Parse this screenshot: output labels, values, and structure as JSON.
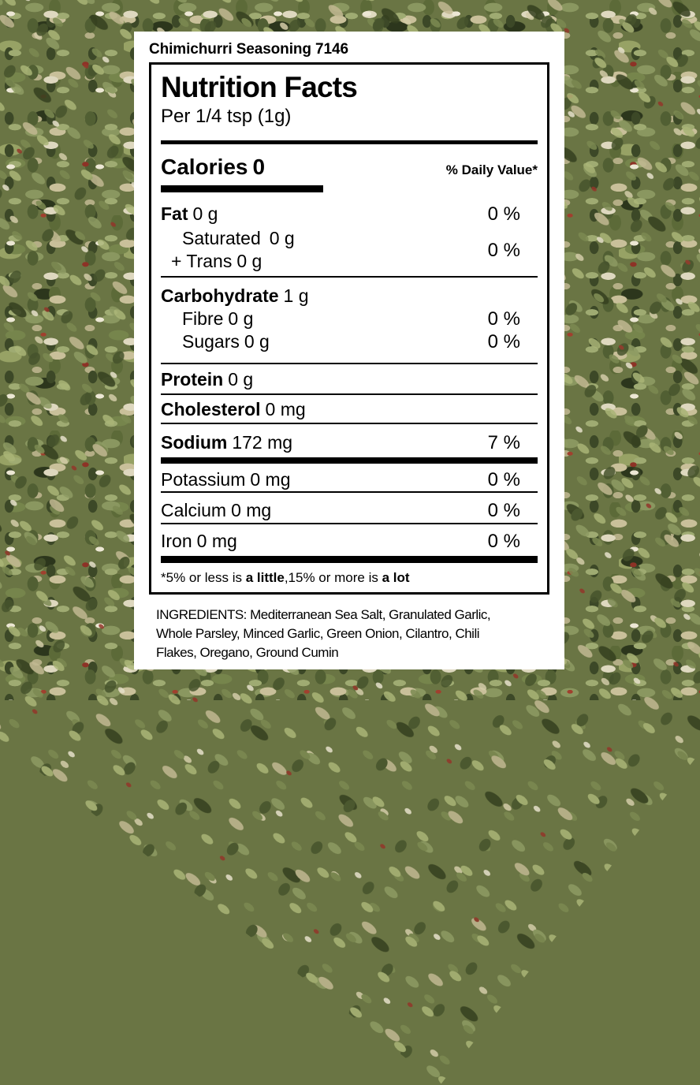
{
  "product": {
    "title": "Chimichurri Seasoning 7146"
  },
  "nutrition": {
    "heading": "Nutrition Facts",
    "serving": "Per 1/4 tsp (1g)",
    "daily_value_header": "% Daily Value*",
    "calories": {
      "label": "Calories",
      "value": "0"
    },
    "rows": {
      "fat": {
        "name": "Fat",
        "amount": "0 g",
        "percent": "0 %"
      },
      "saturated": {
        "name": "Saturated",
        "amount": "0 g"
      },
      "trans": {
        "name": "+ Trans",
        "amount": "0 g"
      },
      "saturated_trans_percent": "0 %",
      "carbohydrate": {
        "name": "Carbohydrate",
        "amount": "1 g"
      },
      "fibre": {
        "name": "Fibre",
        "amount": "0 g",
        "percent": "0 %"
      },
      "sugars": {
        "name": "Sugars",
        "amount": "0 g",
        "percent": "0 %"
      },
      "protein": {
        "name": "Protein",
        "amount": "0 g"
      },
      "cholesterol": {
        "name": "Cholesterol",
        "amount": "0 mg"
      },
      "sodium": {
        "name": "Sodium",
        "amount": "172 mg",
        "percent": "7 %"
      },
      "potassium": {
        "name": "Potassium",
        "amount": "0 mg",
        "percent": "0 %"
      },
      "calcium": {
        "name": "Calcium",
        "amount": "0 mg",
        "percent": "0 %"
      },
      "iron": {
        "name": "Iron",
        "amount": "0 mg",
        "percent": "0 %"
      }
    },
    "footnote": {
      "seg1": "*5% or less is ",
      "seg2_bold": "a little",
      "seg3": ",15% or more is ",
      "seg4_bold": "a lot"
    }
  },
  "ingredients": {
    "lines": [
      "INGREDIENTS: Mediterranean Sea Salt, Granulated Garlic,",
      "Whole Parsley, Minced Garlic, Green Onion, Cilantro, Chili",
      "Flakes, Oregano, Ground Cumin"
    ]
  },
  "colors": {
    "text": "#000000",
    "card": "#ffffff",
    "herb_green_dark": "#3a4526",
    "herb_green": "#6a7544",
    "herb_sage": "#9fab72",
    "herb_tan": "#c9c09a",
    "herb_pale": "#ece7d4",
    "chili_red": "#8d3226"
  }
}
